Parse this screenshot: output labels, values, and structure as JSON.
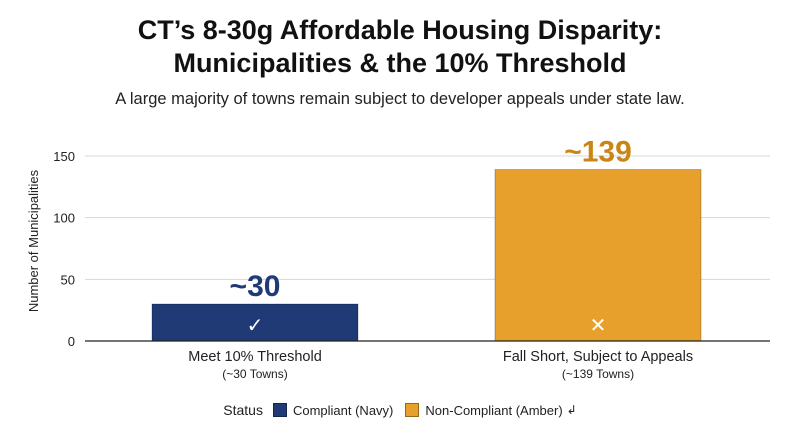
{
  "chart_data": {
    "type": "bar",
    "title_line1": "CT’s 8-30g Affordable Housing Disparity:",
    "title_line2": "Municipalities & the 10% Threshold",
    "subtitle": "A large majority of towns remain subject to developer appeals under state law.",
    "ylabel": "Number of Municipalities",
    "ylim": [
      0,
      150
    ],
    "yticks": [
      0,
      50,
      100,
      150
    ],
    "grid": true,
    "categories": [
      {
        "label": "Meet 10% Threshold",
        "sublabel": "(~30 Towns)",
        "value": 30,
        "data_label": "~30",
        "mark": "✓",
        "color": "#1f3a75",
        "label_color": "#1f3a75"
      },
      {
        "label": "Fall Short, Subject to Appeals",
        "sublabel": "(~139 Towns)",
        "value": 139,
        "data_label": "~139",
        "mark": "✕",
        "color": "#e8a02c",
        "label_color": "#c98615"
      }
    ],
    "legend": {
      "title": "Status",
      "placement": "bottom",
      "items": [
        {
          "label": "Compliant (Navy)",
          "color": "#1f3a75"
        },
        {
          "label": "Non-Compliant (Amber)",
          "color": "#e8a02c"
        }
      ]
    }
  }
}
